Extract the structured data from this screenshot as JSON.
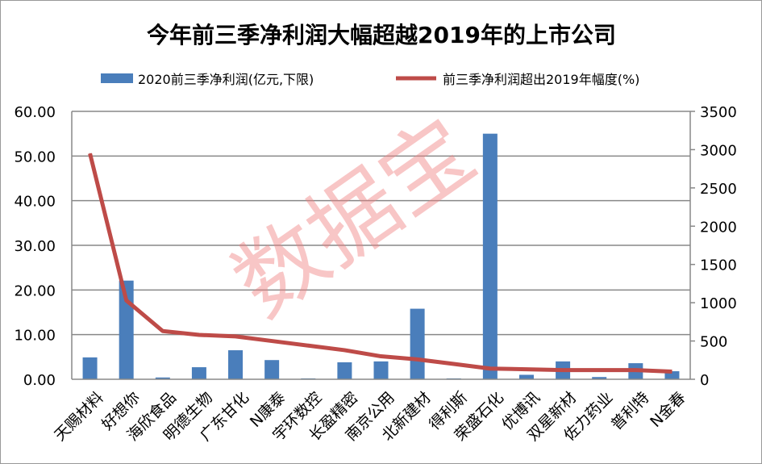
{
  "chart_data": {
    "type": "bar+line",
    "title": "今年前三季净利润大幅超越2019年的上市公司",
    "categories": [
      "天赐材料",
      "好想你",
      "海欣食品",
      "明德生物",
      "广东甘化",
      "N康泰",
      "宇环数控",
      "长盈精密",
      "南京公用",
      "北新建材",
      "得利斯",
      "荣盛石化",
      "优博讯",
      "双星新材",
      "佐力药业",
      "普利特",
      "N金春"
    ],
    "series": [
      {
        "name": "2020前三季净利润(亿元,下限)",
        "type": "bar",
        "axis": "left",
        "color": "#4a7ebb",
        "values": [
          4.9,
          22.1,
          0.4,
          2.7,
          6.5,
          4.3,
          0.2,
          3.8,
          4.0,
          15.8,
          0.2,
          55.0,
          1.0,
          4.0,
          0.5,
          3.6,
          1.8
        ]
      },
      {
        "name": "前三季净利润超出2019年幅度(%)",
        "type": "line",
        "axis": "right",
        "color": "#be4b48",
        "values": [
          2950,
          1030,
          630,
          580,
          560,
          500,
          440,
          380,
          300,
          260,
          200,
          140,
          130,
          120,
          120,
          120,
          100
        ]
      }
    ],
    "left_axis": {
      "ylim": [
        0,
        60
      ],
      "ticks": [
        "0.00",
        "10.00",
        "20.00",
        "30.00",
        "40.00",
        "50.00",
        "60.00"
      ]
    },
    "right_axis": {
      "ylim": [
        0,
        3500
      ],
      "ticks": [
        "0",
        "500",
        "1000",
        "1500",
        "2000",
        "2500",
        "3000",
        "3500"
      ]
    },
    "grid": true,
    "legend_placement": "top",
    "watermark": "数据宝"
  }
}
